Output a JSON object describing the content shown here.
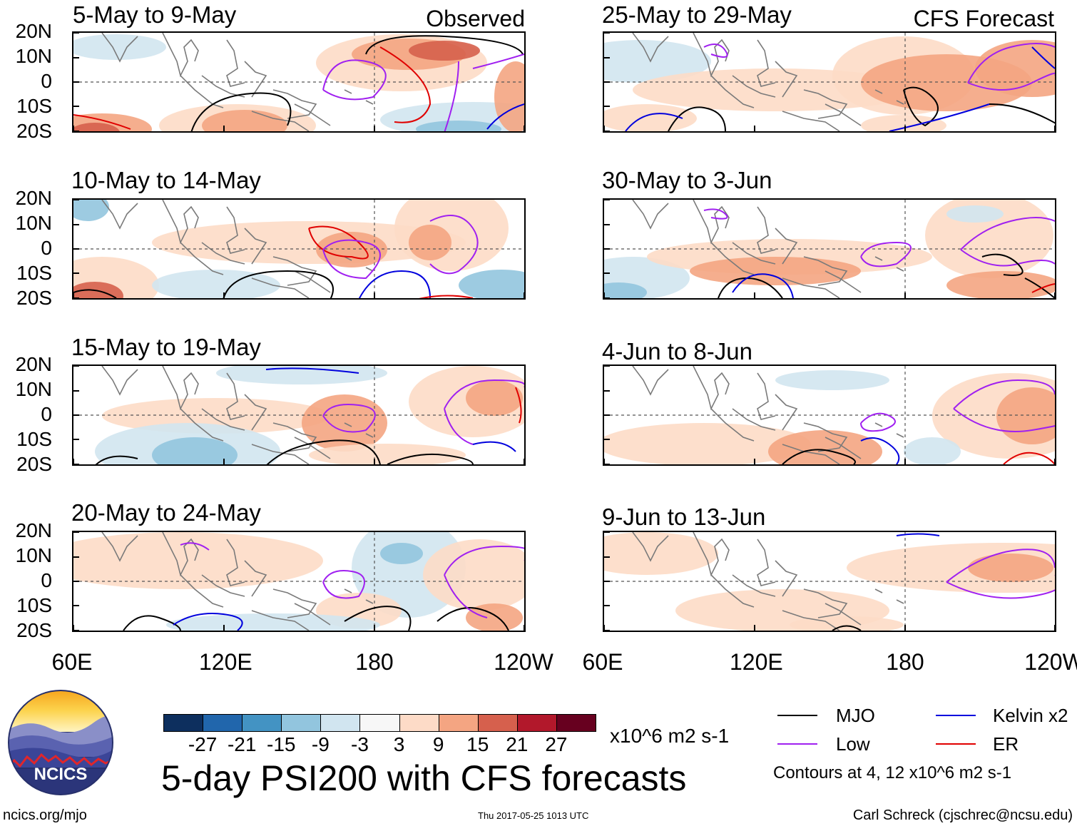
{
  "figure_title": "5-day PSI200 with CFS forecasts",
  "source_link": "ncics.org/mjo",
  "timestamp": "Thu 2017-05-25 1013 UTC",
  "author": "Carl Schreck (cjschrec@ncsu.edu)",
  "logo_text": "NCICS",
  "columns": [
    {
      "label": "Observed",
      "panels": [
        {
          "title": "5-May to 9-May"
        },
        {
          "title": "10-May to 14-May"
        },
        {
          "title": "15-May to 19-May"
        },
        {
          "title": "20-May to 24-May"
        }
      ]
    },
    {
      "label": "CFS Forecast",
      "panels": [
        {
          "title": "25-May to 29-May"
        },
        {
          "title": "30-May to 3-Jun"
        },
        {
          "title": "4-Jun to 8-Jun"
        },
        {
          "title": "9-Jun to 13-Jun"
        }
      ]
    }
  ],
  "y_axis_labels": [
    "20N",
    "10N",
    "0",
    "10S",
    "20S"
  ],
  "x_axis_labels": [
    "60E",
    "120E",
    "180",
    "120W"
  ],
  "colorbar": {
    "colors": [
      "#0d2f5e",
      "#2166ac",
      "#4393c3",
      "#92c5de",
      "#d1e5f0",
      "#f7f7f7",
      "#fddbc7",
      "#f4a582",
      "#d6604d",
      "#b2182b",
      "#67001f"
    ],
    "ticks": [
      "-27",
      "-21",
      "-15",
      "-9",
      "-3",
      "3",
      "9",
      "15",
      "21",
      "27"
    ],
    "units": "x10^6 m2 s-1"
  },
  "legend": {
    "items": [
      {
        "label": "MJO",
        "color": "#000000"
      },
      {
        "label": "Kelvin x2",
        "color": "#0000dd"
      },
      {
        "label": "Low",
        "color": "#a020f0"
      },
      {
        "label": "ER",
        "color": "#e00000"
      }
    ],
    "note": "Contours at 4, 12 x10^6 m2 s-1"
  }
}
